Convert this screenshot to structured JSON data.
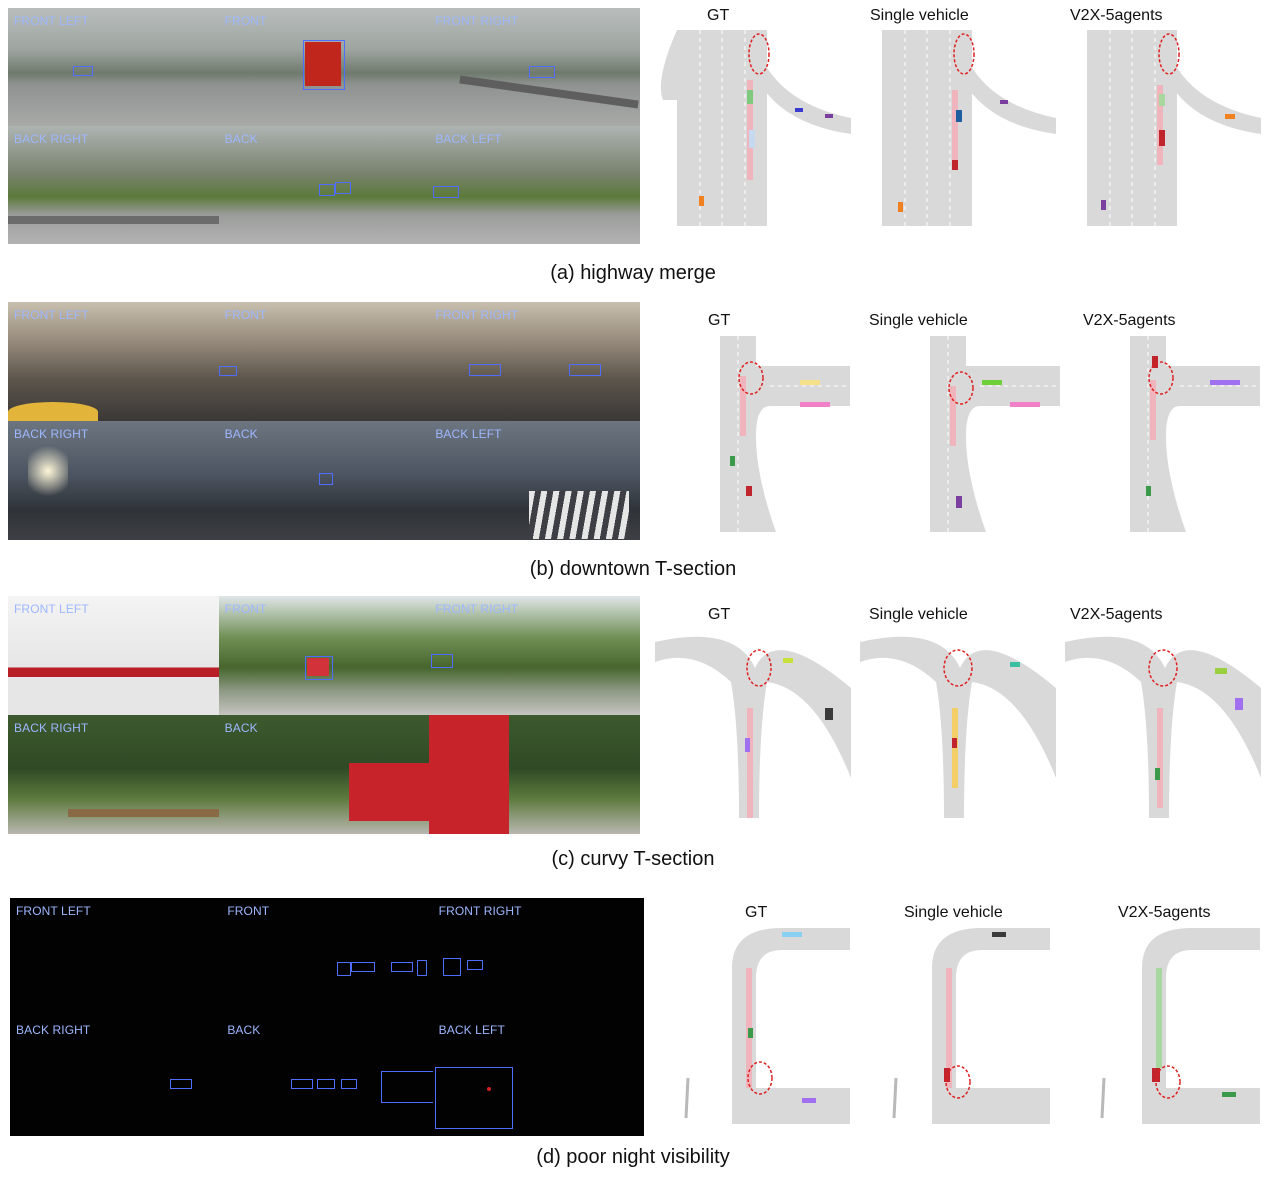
{
  "method_titles": [
    "GT",
    "Single vehicle",
    "V2X-5agents"
  ],
  "camera_labels": [
    "FRONT LEFT",
    "FRONT",
    "FRONT RIGHT",
    "BACK RIGHT",
    "BACK",
    "BACK LEFT"
  ],
  "panels": [
    {
      "caption": "(a) highway merge"
    },
    {
      "caption": "(b) downtown T-section"
    },
    {
      "caption": "(c) curvy T-section"
    },
    {
      "caption": "(d) poor night visibility"
    }
  ],
  "colors": {
    "road": "#d9d9d9",
    "lane_marking": "#ffffff",
    "highlight_circle": "#e02020",
    "bbox": "#4f6dff",
    "camera_label": "#9db7ff"
  },
  "icons": {
    "highlight": "red-dashed-ellipse",
    "vehicle": "colored-rectangle"
  }
}
